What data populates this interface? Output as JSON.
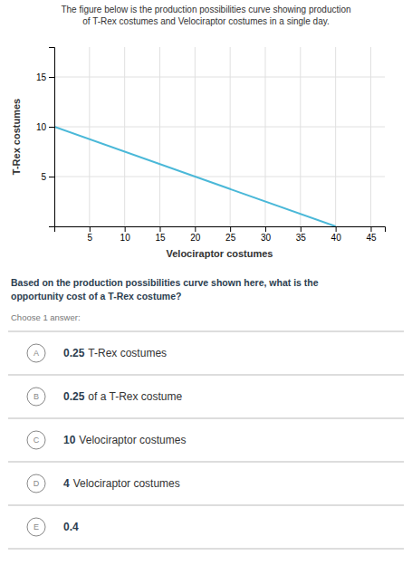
{
  "chart_data": {
    "type": "line",
    "title": [
      "The figure below is the production possibilities curve showing production",
      "of T-Rex costumes and Velociraptor costumes in a single day."
    ],
    "xlabel": "Velociraptor costumes",
    "ylabel": "T-Rex costumes",
    "x": [
      0,
      40
    ],
    "values": [
      10,
      0
    ],
    "color": "#4ab8d8",
    "xlim": [
      0,
      47
    ],
    "xticks": [
      5,
      10,
      15,
      20,
      25,
      30,
      35,
      40,
      45
    ],
    "ylim": [
      0,
      18
    ],
    "yticks": [
      5,
      10,
      15
    ],
    "grid": true,
    "annotations": {
      "question": [
        "Based on the production possibilities curve shown here, what is the",
        "opportunity cost of a T-Rex costume?"
      ],
      "instruction": "Choose 1 answer:",
      "answers": [
        {
          "label": "A",
          "bold": "0.25",
          "rest": "T-Rex costumes"
        },
        {
          "label": "B",
          "bold": "0.25",
          "rest": "of a T-Rex costume"
        },
        {
          "label": "C",
          "bold": "10",
          "rest": "Velociraptor costumes"
        },
        {
          "label": "D",
          "bold": "4",
          "rest": "Velociraptor costumes"
        },
        {
          "label": "E",
          "bold": "0.4"
        }
      ]
    }
  }
}
